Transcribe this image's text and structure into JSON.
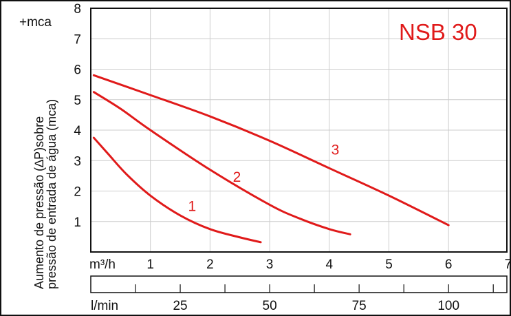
{
  "chart_data": {
    "type": "line",
    "title": "NSB 30",
    "ylabel_line1": "Aumento de pressão (∆P)sobre",
    "ylabel_line2": "pressão de entrada de água (mca)",
    "y_unit": "+mca",
    "x_unit": "m³/h",
    "x2_unit": "l/min",
    "ylim": [
      0,
      8
    ],
    "xlim": [
      0,
      7
    ],
    "y_ticks": [
      "1",
      "2",
      "3",
      "4",
      "5",
      "6",
      "7",
      "8"
    ],
    "x_ticks": [
      "1",
      "2",
      "3",
      "4",
      "5",
      "6",
      "7"
    ],
    "x2_ticks": [
      "25",
      "50",
      "75",
      "100"
    ],
    "grid": true,
    "colors": {
      "curve": "#e01a1a",
      "grid": "#cccccc",
      "axis": "#111111"
    },
    "series": [
      {
        "name": "1",
        "x": [
          0.05,
          0.3,
          0.6,
          1.0,
          1.5,
          2.0,
          2.5,
          2.85
        ],
        "y": [
          3.75,
          3.2,
          2.55,
          1.85,
          1.2,
          0.75,
          0.48,
          0.32
        ]
      },
      {
        "name": "2",
        "x": [
          0.05,
          0.5,
          1.0,
          2.0,
          3.0,
          3.5,
          4.0,
          4.35
        ],
        "y": [
          5.25,
          4.7,
          4.0,
          2.7,
          1.55,
          1.1,
          0.75,
          0.58
        ]
      },
      {
        "name": "3",
        "x": [
          0.05,
          1.0,
          2.0,
          3.0,
          4.0,
          5.0,
          6.0
        ],
        "y": [
          5.8,
          5.15,
          4.45,
          3.65,
          2.75,
          1.85,
          0.88
        ]
      }
    ]
  }
}
